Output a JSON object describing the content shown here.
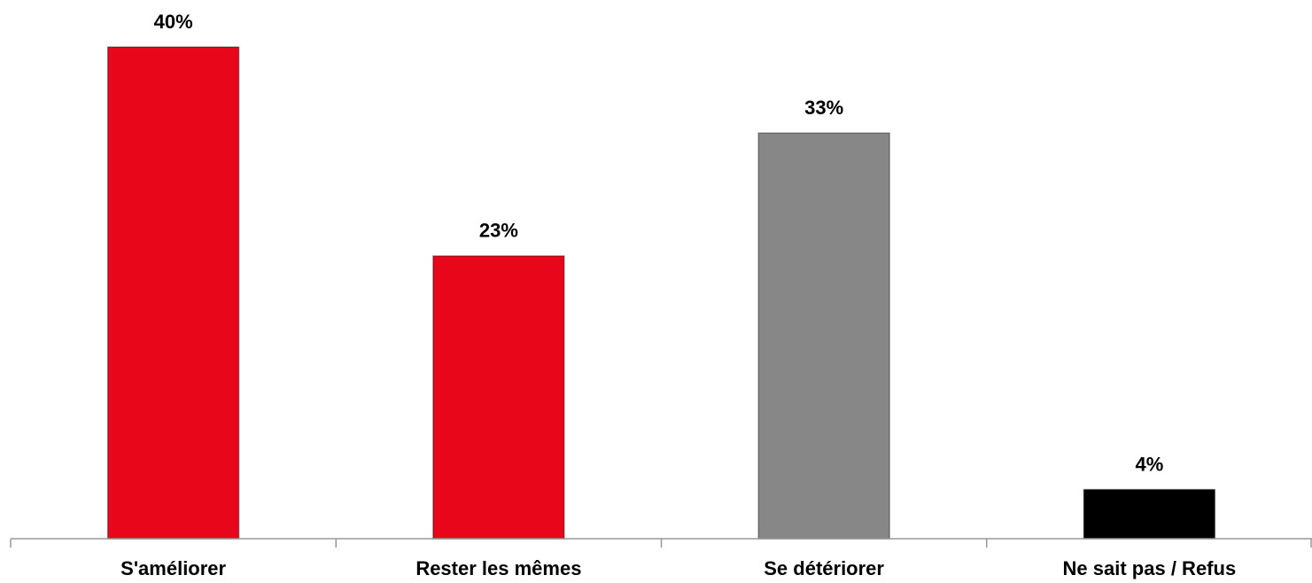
{
  "chart_data": {
    "type": "bar",
    "categories": [
      "S'améliorer",
      "Rester les mêmes",
      "Se détériorer",
      "Ne sait pas / Refus"
    ],
    "values": [
      40,
      23,
      33,
      4
    ],
    "value_labels": [
      "40%",
      "23%",
      "33%",
      "4%"
    ],
    "colors": [
      "#e8061b",
      "#e8061b",
      "#878787",
      "#000000"
    ]
  }
}
